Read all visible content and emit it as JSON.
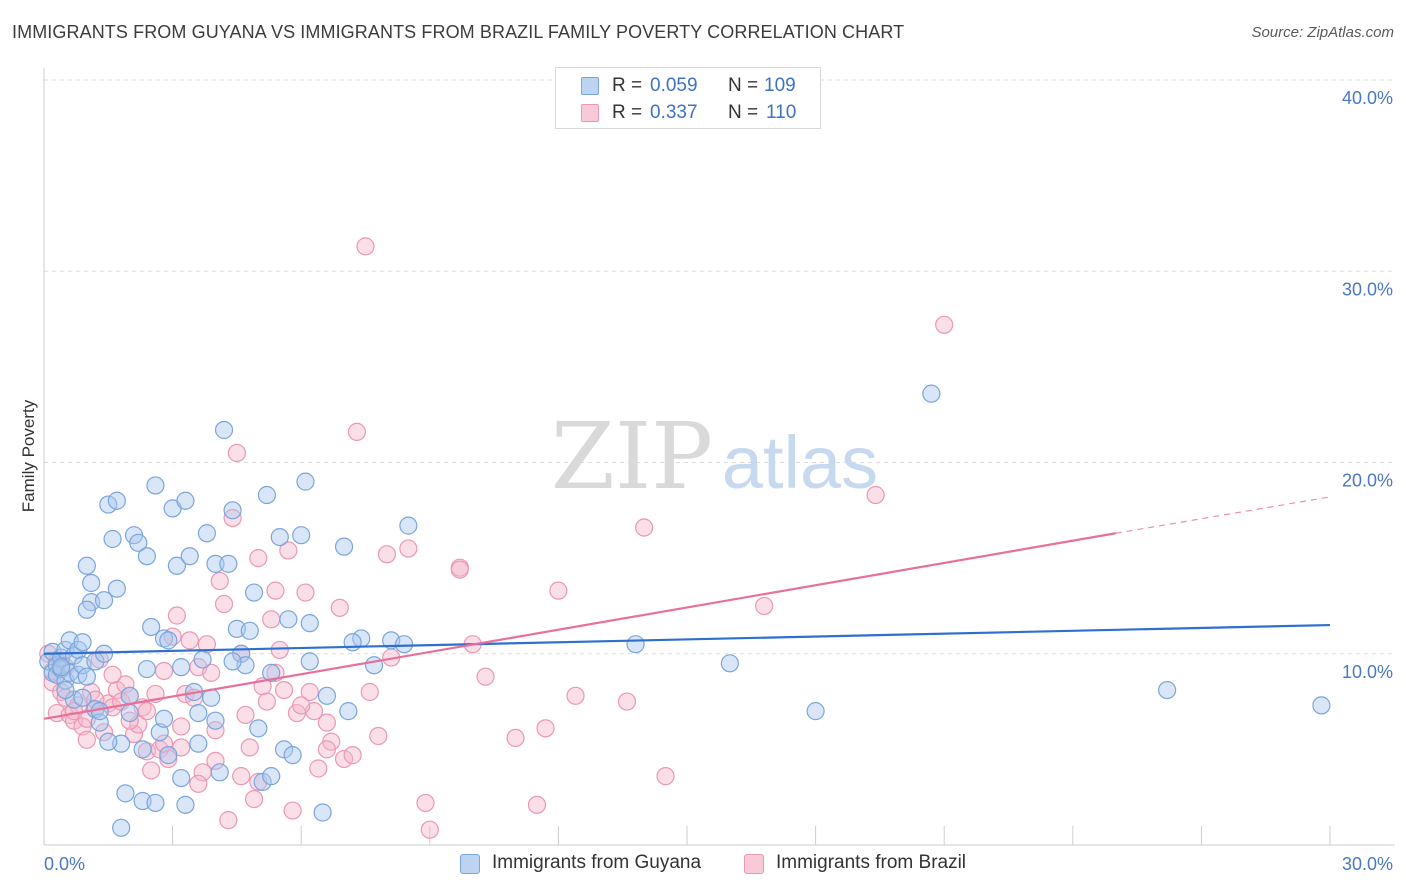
{
  "title": "IMMIGRANTS FROM GUYANA VS IMMIGRANTS FROM BRAZIL FAMILY POVERTY CORRELATION CHART",
  "source": "Source: ZipAtlas.com",
  "watermark": {
    "zip": "ZIP",
    "atlas": "atlas"
  },
  "legend": {
    "guyana": {
      "r_label": "R =",
      "r_value": "0.059",
      "n_label": "N =",
      "n_value": "109"
    },
    "brazil": {
      "r_label": "R =",
      "r_value": "0.337",
      "n_label": "N =",
      "n_value": "110"
    }
  },
  "bottom_legend": {
    "guyana": "Immigrants from Guyana",
    "brazil": "Immigrants from Brazil"
  },
  "colors": {
    "guyana_fill": "#aac8ee",
    "guyana_stroke": "#7aa6dc",
    "guyana_line": "#2f6fcf",
    "brazil_fill": "#f5b9cb",
    "brazil_stroke": "#ec98b2",
    "brazil_line": "#e8709a",
    "tick_text": "#4a78c2",
    "grid": "#dcdcdc"
  },
  "chart_data": {
    "type": "scatter",
    "title": "IMMIGRANTS FROM GUYANA VS IMMIGRANTS FROM BRAZIL FAMILY POVERTY CORRELATION CHART",
    "xlabel": "",
    "ylabel": "Family Poverty",
    "xlim": [
      0,
      30
    ],
    "ylim": [
      0,
      40
    ],
    "x_tick_labels": [
      {
        "value": 0,
        "label": "0.0%"
      },
      {
        "value": 30,
        "label": "30.0%"
      }
    ],
    "y_tick_labels": [
      {
        "value": 10,
        "label": "10.0%"
      },
      {
        "value": 20,
        "label": "20.0%"
      },
      {
        "value": 30,
        "label": "30.0%"
      },
      {
        "value": 40,
        "label": "40.0%"
      }
    ],
    "grid": true,
    "legend_position": "top-center",
    "series": [
      {
        "name": "Immigrants from Guyana",
        "r": 0.059,
        "n": 109,
        "trend": {
          "x": [
            0,
            30
          ],
          "y": [
            10.0,
            11.5
          ]
        },
        "points": [
          [
            0.1,
            9.6
          ],
          [
            0.2,
            9.0
          ],
          [
            0.2,
            10.1
          ],
          [
            0.3,
            9.4
          ],
          [
            0.3,
            8.9
          ],
          [
            0.4,
            9.8
          ],
          [
            0.4,
            9.2
          ],
          [
            0.5,
            8.6
          ],
          [
            0.5,
            10.2
          ],
          [
            0.6,
            9.0
          ],
          [
            0.6,
            10.7
          ],
          [
            0.7,
            9.9
          ],
          [
            0.7,
            7.6
          ],
          [
            0.8,
            8.9
          ],
          [
            0.8,
            10.2
          ],
          [
            0.9,
            9.4
          ],
          [
            0.9,
            10.6
          ],
          [
            1.0,
            8.8
          ],
          [
            1.0,
            14.6
          ],
          [
            1.1,
            13.7
          ],
          [
            1.1,
            12.7
          ],
          [
            1.2,
            9.6
          ],
          [
            1.2,
            7.1
          ],
          [
            1.3,
            6.4
          ],
          [
            1.4,
            10.0
          ],
          [
            1.5,
            17.8
          ],
          [
            1.6,
            16.0
          ],
          [
            1.7,
            18.0
          ],
          [
            1.7,
            13.4
          ],
          [
            1.8,
            5.3
          ],
          [
            1.9,
            2.7
          ],
          [
            2.0,
            7.8
          ],
          [
            2.0,
            6.9
          ],
          [
            2.1,
            16.2
          ],
          [
            2.2,
            15.8
          ],
          [
            2.3,
            5.0
          ],
          [
            2.4,
            9.2
          ],
          [
            2.4,
            15.1
          ],
          [
            2.5,
            11.4
          ],
          [
            2.6,
            18.8
          ],
          [
            2.7,
            5.9
          ],
          [
            2.8,
            10.8
          ],
          [
            2.8,
            6.6
          ],
          [
            2.9,
            4.7
          ],
          [
            3.0,
            17.6
          ],
          [
            3.1,
            14.6
          ],
          [
            3.2,
            9.3
          ],
          [
            3.3,
            18.0
          ],
          [
            3.4,
            15.1
          ],
          [
            3.5,
            8.0
          ],
          [
            3.6,
            6.9
          ],
          [
            3.7,
            9.7
          ],
          [
            3.8,
            16.3
          ],
          [
            3.9,
            7.7
          ],
          [
            4.0,
            14.7
          ],
          [
            4.1,
            3.8
          ],
          [
            4.2,
            21.7
          ],
          [
            4.3,
            14.7
          ],
          [
            4.4,
            17.5
          ],
          [
            4.5,
            11.3
          ],
          [
            4.6,
            10.0
          ],
          [
            4.7,
            9.4
          ],
          [
            4.8,
            11.2
          ],
          [
            5.0,
            6.1
          ],
          [
            5.1,
            3.3
          ],
          [
            5.2,
            18.3
          ],
          [
            5.3,
            3.6
          ],
          [
            5.5,
            16.1
          ],
          [
            5.6,
            5.0
          ],
          [
            5.7,
            11.8
          ],
          [
            5.8,
            4.7
          ],
          [
            6.0,
            16.2
          ],
          [
            6.1,
            19.0
          ],
          [
            6.2,
            11.6
          ],
          [
            6.5,
            1.7
          ],
          [
            6.6,
            7.8
          ],
          [
            7.0,
            15.6
          ],
          [
            7.1,
            7.0
          ],
          [
            7.4,
            10.8
          ],
          [
            7.7,
            9.4
          ],
          [
            8.1,
            10.7
          ],
          [
            8.5,
            16.7
          ],
          [
            8.4,
            10.5
          ],
          [
            13.8,
            10.5
          ],
          [
            16.0,
            9.5
          ],
          [
            18.0,
            7.0
          ],
          [
            26.2,
            8.1
          ],
          [
            29.8,
            7.3
          ],
          [
            20.7,
            23.6
          ],
          [
            0.4,
            9.3
          ],
          [
            0.5,
            8.1
          ],
          [
            0.9,
            7.7
          ],
          [
            1.3,
            7.0
          ],
          [
            1.5,
            5.4
          ],
          [
            1.8,
            0.9
          ],
          [
            2.3,
            2.3
          ],
          [
            2.6,
            2.2
          ],
          [
            3.2,
            3.5
          ],
          [
            3.3,
            2.1
          ],
          [
            3.6,
            5.3
          ],
          [
            4.0,
            6.5
          ],
          [
            4.4,
            9.6
          ],
          [
            4.9,
            13.2
          ],
          [
            5.3,
            9.0
          ],
          [
            6.2,
            9.6
          ],
          [
            7.2,
            10.6
          ],
          [
            1.0,
            12.3
          ],
          [
            1.4,
            12.8
          ],
          [
            2.9,
            10.7
          ]
        ]
      },
      {
        "name": "Immigrants from Brazil",
        "r": 0.337,
        "n": 110,
        "trend": {
          "x": [
            0,
            25
          ],
          "y": [
            6.6,
            16.3
          ]
        },
        "trend_dashed": {
          "x": [
            25,
            30
          ],
          "y": [
            16.3,
            18.2
          ]
        },
        "points": [
          [
            0.1,
            10.0
          ],
          [
            0.2,
            8.5
          ],
          [
            0.3,
            9.6
          ],
          [
            0.3,
            6.9
          ],
          [
            0.4,
            8.0
          ],
          [
            0.5,
            7.7
          ],
          [
            0.6,
            6.8
          ],
          [
            0.7,
            6.5
          ],
          [
            0.8,
            7.3
          ],
          [
            0.9,
            6.2
          ],
          [
            1.0,
            5.5
          ],
          [
            1.1,
            8.0
          ],
          [
            1.2,
            7.1
          ],
          [
            1.3,
            9.7
          ],
          [
            1.4,
            5.9
          ],
          [
            1.5,
            7.4
          ],
          [
            1.6,
            7.2
          ],
          [
            1.7,
            8.1
          ],
          [
            1.8,
            7.5
          ],
          [
            1.9,
            8.4
          ],
          [
            2.0,
            7.8
          ],
          [
            2.1,
            5.8
          ],
          [
            2.2,
            6.3
          ],
          [
            2.3,
            7.2
          ],
          [
            2.4,
            4.9
          ],
          [
            2.5,
            3.9
          ],
          [
            2.6,
            7.9
          ],
          [
            2.7,
            5.0
          ],
          [
            2.8,
            9.1
          ],
          [
            2.9,
            4.5
          ],
          [
            3.0,
            10.9
          ],
          [
            3.1,
            12.0
          ],
          [
            3.2,
            6.2
          ],
          [
            3.3,
            7.9
          ],
          [
            3.4,
            10.7
          ],
          [
            3.5,
            7.7
          ],
          [
            3.6,
            9.3
          ],
          [
            3.7,
            3.8
          ],
          [
            3.8,
            10.5
          ],
          [
            3.9,
            9.0
          ],
          [
            4.0,
            4.4
          ],
          [
            4.1,
            13.8
          ],
          [
            4.2,
            12.6
          ],
          [
            4.3,
            1.3
          ],
          [
            4.4,
            17.1
          ],
          [
            4.5,
            20.5
          ],
          [
            4.6,
            3.6
          ],
          [
            4.7,
            6.8
          ],
          [
            4.8,
            5.1
          ],
          [
            4.9,
            2.4
          ],
          [
            5.0,
            15.0
          ],
          [
            5.1,
            8.3
          ],
          [
            5.2,
            7.5
          ],
          [
            5.3,
            11.8
          ],
          [
            5.4,
            13.3
          ],
          [
            5.5,
            10.2
          ],
          [
            5.6,
            8.1
          ],
          [
            5.7,
            15.4
          ],
          [
            5.8,
            1.8
          ],
          [
            5.9,
            6.9
          ],
          [
            6.1,
            13.2
          ],
          [
            6.2,
            8.0
          ],
          [
            6.3,
            7.0
          ],
          [
            6.4,
            4.0
          ],
          [
            6.6,
            6.4
          ],
          [
            6.7,
            5.4
          ],
          [
            6.9,
            12.4
          ],
          [
            7.0,
            4.5
          ],
          [
            7.3,
            21.6
          ],
          [
            7.5,
            31.3
          ],
          [
            7.8,
            5.7
          ],
          [
            8.0,
            15.2
          ],
          [
            8.1,
            9.8
          ],
          [
            8.5,
            15.5
          ],
          [
            8.9,
            2.2
          ],
          [
            9.0,
            0.8
          ],
          [
            9.7,
            14.5
          ],
          [
            10.0,
            10.5
          ],
          [
            10.3,
            8.8
          ],
          [
            11.0,
            5.6
          ],
          [
            11.5,
            2.1
          ],
          [
            11.7,
            6.1
          ],
          [
            12.0,
            13.3
          ],
          [
            12.4,
            7.8
          ],
          [
            13.6,
            7.5
          ],
          [
            14.0,
            16.6
          ],
          [
            14.5,
            3.6
          ],
          [
            16.8,
            12.5
          ],
          [
            19.4,
            18.3
          ],
          [
            21.0,
            27.2
          ],
          [
            0.2,
            9.1
          ],
          [
            0.5,
            9.3
          ],
          [
            0.7,
            7.0
          ],
          [
            1.0,
            6.6
          ],
          [
            1.2,
            7.6
          ],
          [
            1.6,
            8.9
          ],
          [
            2.0,
            6.5
          ],
          [
            2.4,
            7.0
          ],
          [
            2.8,
            5.3
          ],
          [
            3.2,
            5.1
          ],
          [
            3.6,
            3.2
          ],
          [
            4.0,
            6.0
          ],
          [
            4.6,
            10.0
          ],
          [
            5.0,
            3.3
          ],
          [
            5.4,
            9.0
          ],
          [
            6.0,
            7.3
          ],
          [
            6.6,
            5.0
          ],
          [
            7.2,
            4.7
          ],
          [
            7.6,
            8.0
          ],
          [
            9.7,
            14.4
          ]
        ]
      }
    ]
  }
}
